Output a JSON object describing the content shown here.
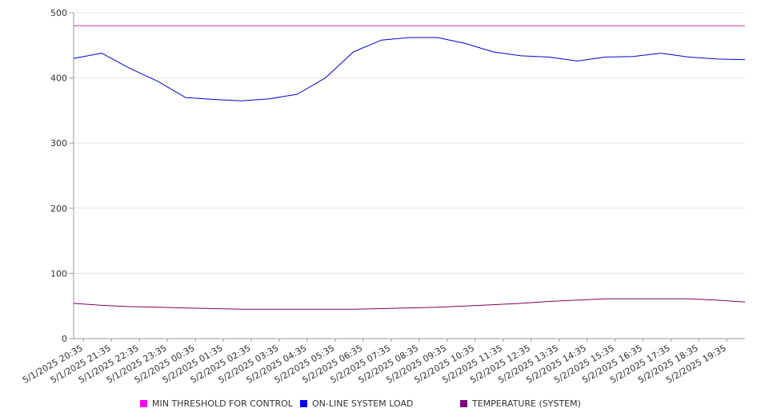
{
  "chart_data": {
    "type": "line",
    "title": "",
    "xlabel": "",
    "ylabel": "",
    "ylim": [
      0,
      500
    ],
    "yticks": [
      0,
      100,
      200,
      300,
      400,
      500
    ],
    "grid": true,
    "legend_position": "bottom",
    "x_tick_labels": [
      "5/1/2025 20:35",
      "5/1/2025 21:35",
      "5/1/2025 22:35",
      "5/1/2025 23:35",
      "5/2/2025 00:35",
      "5/2/2025 01:35",
      "5/2/2025 02:35",
      "5/2/2025 03:35",
      "5/2/2025 04:35",
      "5/2/2025 05:35",
      "5/2/2025 06:35",
      "5/2/2025 07:35",
      "5/2/2025 08:35",
      "5/2/2025 09:35",
      "5/2/2025 10:35",
      "5/2/2025 11:35",
      "5/2/2025 12:35",
      "5/2/2025 13:35",
      "5/2/2025 14:35",
      "5/2/2025 15:35",
      "5/2/2025 16:35",
      "5/2/2025 17:35",
      "5/2/2025 18:35",
      "5/2/2025 19:35"
    ],
    "series": [
      {
        "name": "MIN THRESHOLD FOR CONTROL",
        "color": "#cc33cc",
        "legend_color": "#ff00ff",
        "values": [
          480,
          480,
          480,
          480,
          480,
          480,
          480,
          480,
          480,
          480,
          480,
          480,
          480,
          480,
          480,
          480,
          480,
          480,
          480,
          480,
          480,
          480,
          480,
          480,
          480
        ]
      },
      {
        "name": "ON-LINE SYSTEM LOAD",
        "color": "#0000cc",
        "legend_color": "#0000ff",
        "values": [
          430,
          438,
          415,
          395,
          370,
          367,
          365,
          368,
          375,
          400,
          440,
          458,
          462,
          462,
          453,
          440,
          434,
          432,
          426,
          432,
          433,
          438,
          432,
          429,
          428
        ]
      },
      {
        "name": "TEMPERATURE (SYSTEM)",
        "color": "#800060",
        "legend_color": "#800080",
        "values": [
          54,
          51,
          49,
          48,
          47,
          46,
          45,
          45,
          45,
          45,
          45,
          46,
          47,
          48,
          50,
          52,
          54,
          57,
          59,
          61,
          61,
          61,
          61,
          59,
          56
        ]
      }
    ]
  }
}
